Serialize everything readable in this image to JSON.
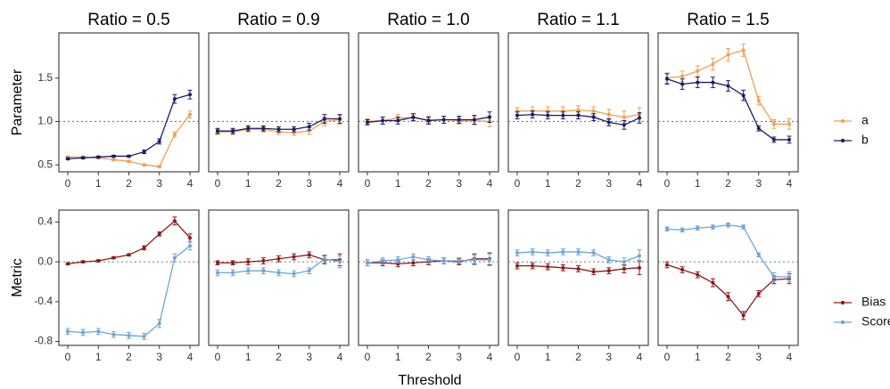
{
  "chart_data": {
    "type": "line",
    "xlabel": "Threshold",
    "panel_titles": [
      "Ratio = 0.5",
      "Ratio = 0.9",
      "Ratio = 1.0",
      "Ratio = 1.1",
      "Ratio = 1.5"
    ],
    "x": [
      0,
      0.5,
      1,
      1.5,
      2,
      2.5,
      3,
      3.5,
      4
    ],
    "x_ticks": [
      "0",
      "1",
      "2",
      "3",
      "4"
    ],
    "rows": [
      {
        "ylabel": "Parameter",
        "ylim": [
          0.42,
          2.02
        ],
        "y_ticks": [
          0.5,
          1.0,
          1.5
        ],
        "y_tick_labels": [
          "0.5",
          "1.0",
          "1.5"
        ],
        "reference_line": 1.0,
        "series": [
          {
            "name": "a",
            "color": "#F0A050",
            "panels": [
              {
                "values": [
                  0.59,
                  0.59,
                  0.58,
                  0.56,
                  0.54,
                  0.5,
                  0.48,
                  0.85,
                  1.08
                ],
                "errors": [
                  0.01,
                  0.01,
                  0.01,
                  0.01,
                  0.01,
                  0.01,
                  0.01,
                  0.03,
                  0.04
                ]
              },
              {
                "values": [
                  0.88,
                  0.88,
                  0.91,
                  0.91,
                  0.88,
                  0.87,
                  0.89,
                  1.0,
                  1.02
                ],
                "errors": [
                  0.03,
                  0.03,
                  0.03,
                  0.03,
                  0.03,
                  0.03,
                  0.04,
                  0.05,
                  0.05
                ]
              },
              {
                "values": [
                  1.0,
                  1.01,
                  1.04,
                  1.04,
                  1.02,
                  1.02,
                  1.01,
                  1.01,
                  1.0
                ],
                "errors": [
                  0.03,
                  0.04,
                  0.04,
                  0.04,
                  0.04,
                  0.04,
                  0.04,
                  0.05,
                  0.06
                ]
              },
              {
                "values": [
                  1.12,
                  1.12,
                  1.12,
                  1.12,
                  1.13,
                  1.12,
                  1.08,
                  1.05,
                  1.08
                ],
                "errors": [
                  0.04,
                  0.05,
                  0.05,
                  0.05,
                  0.05,
                  0.05,
                  0.06,
                  0.07,
                  0.08
                ]
              },
              {
                "values": [
                  1.5,
                  1.52,
                  1.58,
                  1.66,
                  1.77,
                  1.82,
                  1.24,
                  0.97,
                  0.97
                ],
                "errors": [
                  0.06,
                  0.06,
                  0.06,
                  0.07,
                  0.07,
                  0.07,
                  0.05,
                  0.05,
                  0.06
                ]
              }
            ]
          },
          {
            "name": "b",
            "color": "#1B1B6B",
            "panels": [
              {
                "values": [
                  0.57,
                  0.58,
                  0.59,
                  0.6,
                  0.6,
                  0.65,
                  0.77,
                  1.26,
                  1.31
                ],
                "errors": [
                  0.01,
                  0.01,
                  0.01,
                  0.01,
                  0.01,
                  0.02,
                  0.03,
                  0.05,
                  0.05
                ]
              },
              {
                "values": [
                  0.89,
                  0.89,
                  0.92,
                  0.92,
                  0.91,
                  0.91,
                  0.94,
                  1.03,
                  1.03
                ],
                "errors": [
                  0.03,
                  0.03,
                  0.03,
                  0.03,
                  0.03,
                  0.03,
                  0.04,
                  0.05,
                  0.05
                ]
              },
              {
                "values": [
                  0.99,
                  1.01,
                  1.01,
                  1.05,
                  1.01,
                  1.02,
                  1.02,
                  1.02,
                  1.05
                ],
                "errors": [
                  0.03,
                  0.04,
                  0.04,
                  0.04,
                  0.04,
                  0.04,
                  0.04,
                  0.05,
                  0.06
                ]
              },
              {
                "values": [
                  1.07,
                  1.08,
                  1.07,
                  1.07,
                  1.07,
                  1.05,
                  0.99,
                  0.96,
                  1.04
                ],
                "errors": [
                  0.04,
                  0.04,
                  0.04,
                  0.04,
                  0.04,
                  0.04,
                  0.04,
                  0.05,
                  0.06
                ]
              },
              {
                "values": [
                  1.49,
                  1.43,
                  1.45,
                  1.45,
                  1.41,
                  1.3,
                  0.92,
                  0.79,
                  0.79
                ],
                "errors": [
                  0.06,
                  0.06,
                  0.06,
                  0.06,
                  0.06,
                  0.06,
                  0.03,
                  0.03,
                  0.04
                ]
              }
            ]
          }
        ]
      },
      {
        "ylabel": "Metric",
        "ylim": [
          -0.84,
          0.52
        ],
        "y_ticks": [
          -0.8,
          -0.4,
          0.0,
          0.4
        ],
        "y_tick_labels": [
          "-0.8",
          "-0.4",
          "0.0",
          "0.4"
        ],
        "reference_line": 0.0,
        "series": [
          {
            "name": "Bias",
            "color": "#8B1A1A",
            "panels": [
              {
                "values": [
                  -0.02,
                  0.0,
                  0.01,
                  0.04,
                  0.07,
                  0.14,
                  0.28,
                  0.41,
                  0.24
                ],
                "errors": [
                  0.01,
                  0.01,
                  0.01,
                  0.01,
                  0.01,
                  0.02,
                  0.02,
                  0.04,
                  0.04
                ]
              },
              {
                "values": [
                  -0.01,
                  -0.01,
                  0.0,
                  0.01,
                  0.03,
                  0.05,
                  0.07,
                  0.02,
                  0.02
                ],
                "errors": [
                  0.02,
                  0.02,
                  0.03,
                  0.03,
                  0.03,
                  0.03,
                  0.03,
                  0.04,
                  0.06
                ]
              },
              {
                "values": [
                  -0.01,
                  -0.01,
                  -0.02,
                  -0.01,
                  0.0,
                  0.01,
                  0.0,
                  0.03,
                  0.03
                ],
                "errors": [
                  0.03,
                  0.03,
                  0.03,
                  0.03,
                  0.03,
                  0.03,
                  0.03,
                  0.05,
                  0.06
                ]
              },
              {
                "values": [
                  -0.04,
                  -0.04,
                  -0.05,
                  -0.06,
                  -0.07,
                  -0.1,
                  -0.09,
                  -0.07,
                  -0.06
                ],
                "errors": [
                  0.03,
                  0.03,
                  0.03,
                  0.03,
                  0.03,
                  0.03,
                  0.03,
                  0.04,
                  0.07
                ]
              },
              {
                "values": [
                  -0.03,
                  -0.08,
                  -0.13,
                  -0.21,
                  -0.35,
                  -0.54,
                  -0.32,
                  -0.18,
                  -0.17
                ],
                "errors": [
                  0.03,
                  0.03,
                  0.03,
                  0.04,
                  0.04,
                  0.04,
                  0.03,
                  0.04,
                  0.05
                ]
              }
            ]
          },
          {
            "name": "Score",
            "color": "#6BA6D6",
            "panels": [
              {
                "values": [
                  -0.7,
                  -0.71,
                  -0.7,
                  -0.73,
                  -0.74,
                  -0.75,
                  -0.62,
                  0.04,
                  0.16
                ],
                "errors": [
                  0.03,
                  0.03,
                  0.03,
                  0.03,
                  0.03,
                  0.03,
                  0.04,
                  0.04,
                  0.04
                ]
              },
              {
                "values": [
                  -0.11,
                  -0.11,
                  -0.09,
                  -0.09,
                  -0.11,
                  -0.12,
                  -0.09,
                  0.03,
                  0.0
                ],
                "errors": [
                  0.03,
                  0.03,
                  0.03,
                  0.03,
                  0.03,
                  0.03,
                  0.03,
                  0.04,
                  0.06
                ]
              },
              {
                "values": [
                  -0.01,
                  0.01,
                  0.02,
                  0.05,
                  0.02,
                  0.01,
                  0.01,
                  0.02,
                  0.02
                ],
                "errors": [
                  0.03,
                  0.03,
                  0.03,
                  0.03,
                  0.03,
                  0.03,
                  0.03,
                  0.05,
                  0.06
                ]
              },
              {
                "values": [
                  0.09,
                  0.1,
                  0.09,
                  0.1,
                  0.1,
                  0.09,
                  0.02,
                  0.0,
                  0.06
                ],
                "errors": [
                  0.03,
                  0.03,
                  0.03,
                  0.03,
                  0.03,
                  0.03,
                  0.03,
                  0.04,
                  0.06
                ]
              },
              {
                "values": [
                  0.33,
                  0.32,
                  0.34,
                  0.35,
                  0.37,
                  0.35,
                  0.07,
                  -0.15,
                  -0.15
                ],
                "errors": [
                  0.02,
                  0.02,
                  0.02,
                  0.02,
                  0.02,
                  0.02,
                  0.02,
                  0.04,
                  0.05
                ]
              }
            ]
          }
        ]
      }
    ]
  }
}
